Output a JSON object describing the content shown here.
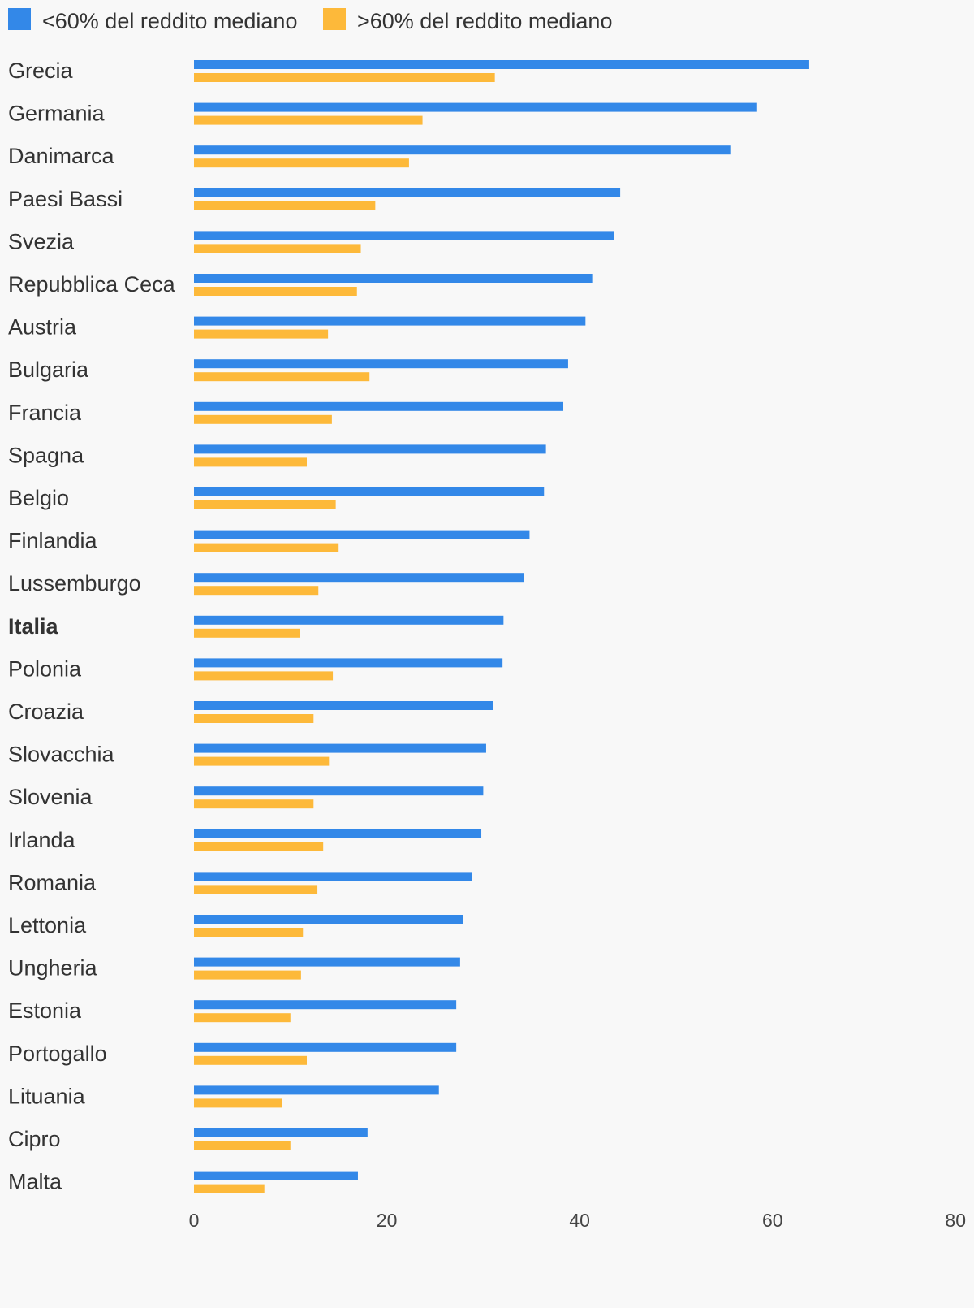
{
  "chart_data": {
    "type": "bar",
    "orientation": "horizontal",
    "categories": [
      "Grecia",
      "Germania",
      "Danimarca",
      "Paesi Bassi",
      "Svezia",
      "Repubblica Ceca",
      "Austria",
      "Bulgaria",
      "Francia",
      "Spagna",
      "Belgio",
      "Finlandia",
      "Lussemburgo",
      "Italia",
      "Polonia",
      "Croazia",
      "Slovacchia",
      "Slovenia",
      "Irlanda",
      "Romania",
      "Lettonia",
      "Ungheria",
      "Estonia",
      "Portogallo",
      "Lituania",
      "Cipro",
      "Malta"
    ],
    "highlight_category": "Italia",
    "series": [
      {
        "name": "<60% del reddito mediano",
        "color": "#3388e8",
        "values": [
          63.8,
          58.4,
          55.7,
          44.2,
          43.6,
          41.3,
          40.6,
          38.8,
          38.3,
          36.5,
          36.3,
          34.8,
          34.2,
          32.1,
          32.0,
          31.0,
          30.3,
          30.0,
          29.8,
          28.8,
          27.9,
          27.6,
          27.2,
          27.2,
          25.4,
          18.0,
          17.0
        ]
      },
      {
        "name": ">60% del reddito mediano",
        "color": "#fdb93a",
        "values": [
          31.2,
          23.7,
          22.3,
          18.8,
          17.3,
          16.9,
          13.9,
          18.2,
          14.3,
          11.7,
          14.7,
          15.0,
          12.9,
          11.0,
          14.4,
          12.4,
          14.0,
          12.4,
          13.4,
          12.8,
          11.3,
          11.1,
          10.0,
          11.7,
          9.1,
          10.0,
          7.3
        ]
      }
    ],
    "xlim": [
      0,
      80
    ],
    "xticks": [
      "0",
      "20",
      "40",
      "60",
      "80"
    ],
    "legend_position": "top-left",
    "grid": false
  }
}
